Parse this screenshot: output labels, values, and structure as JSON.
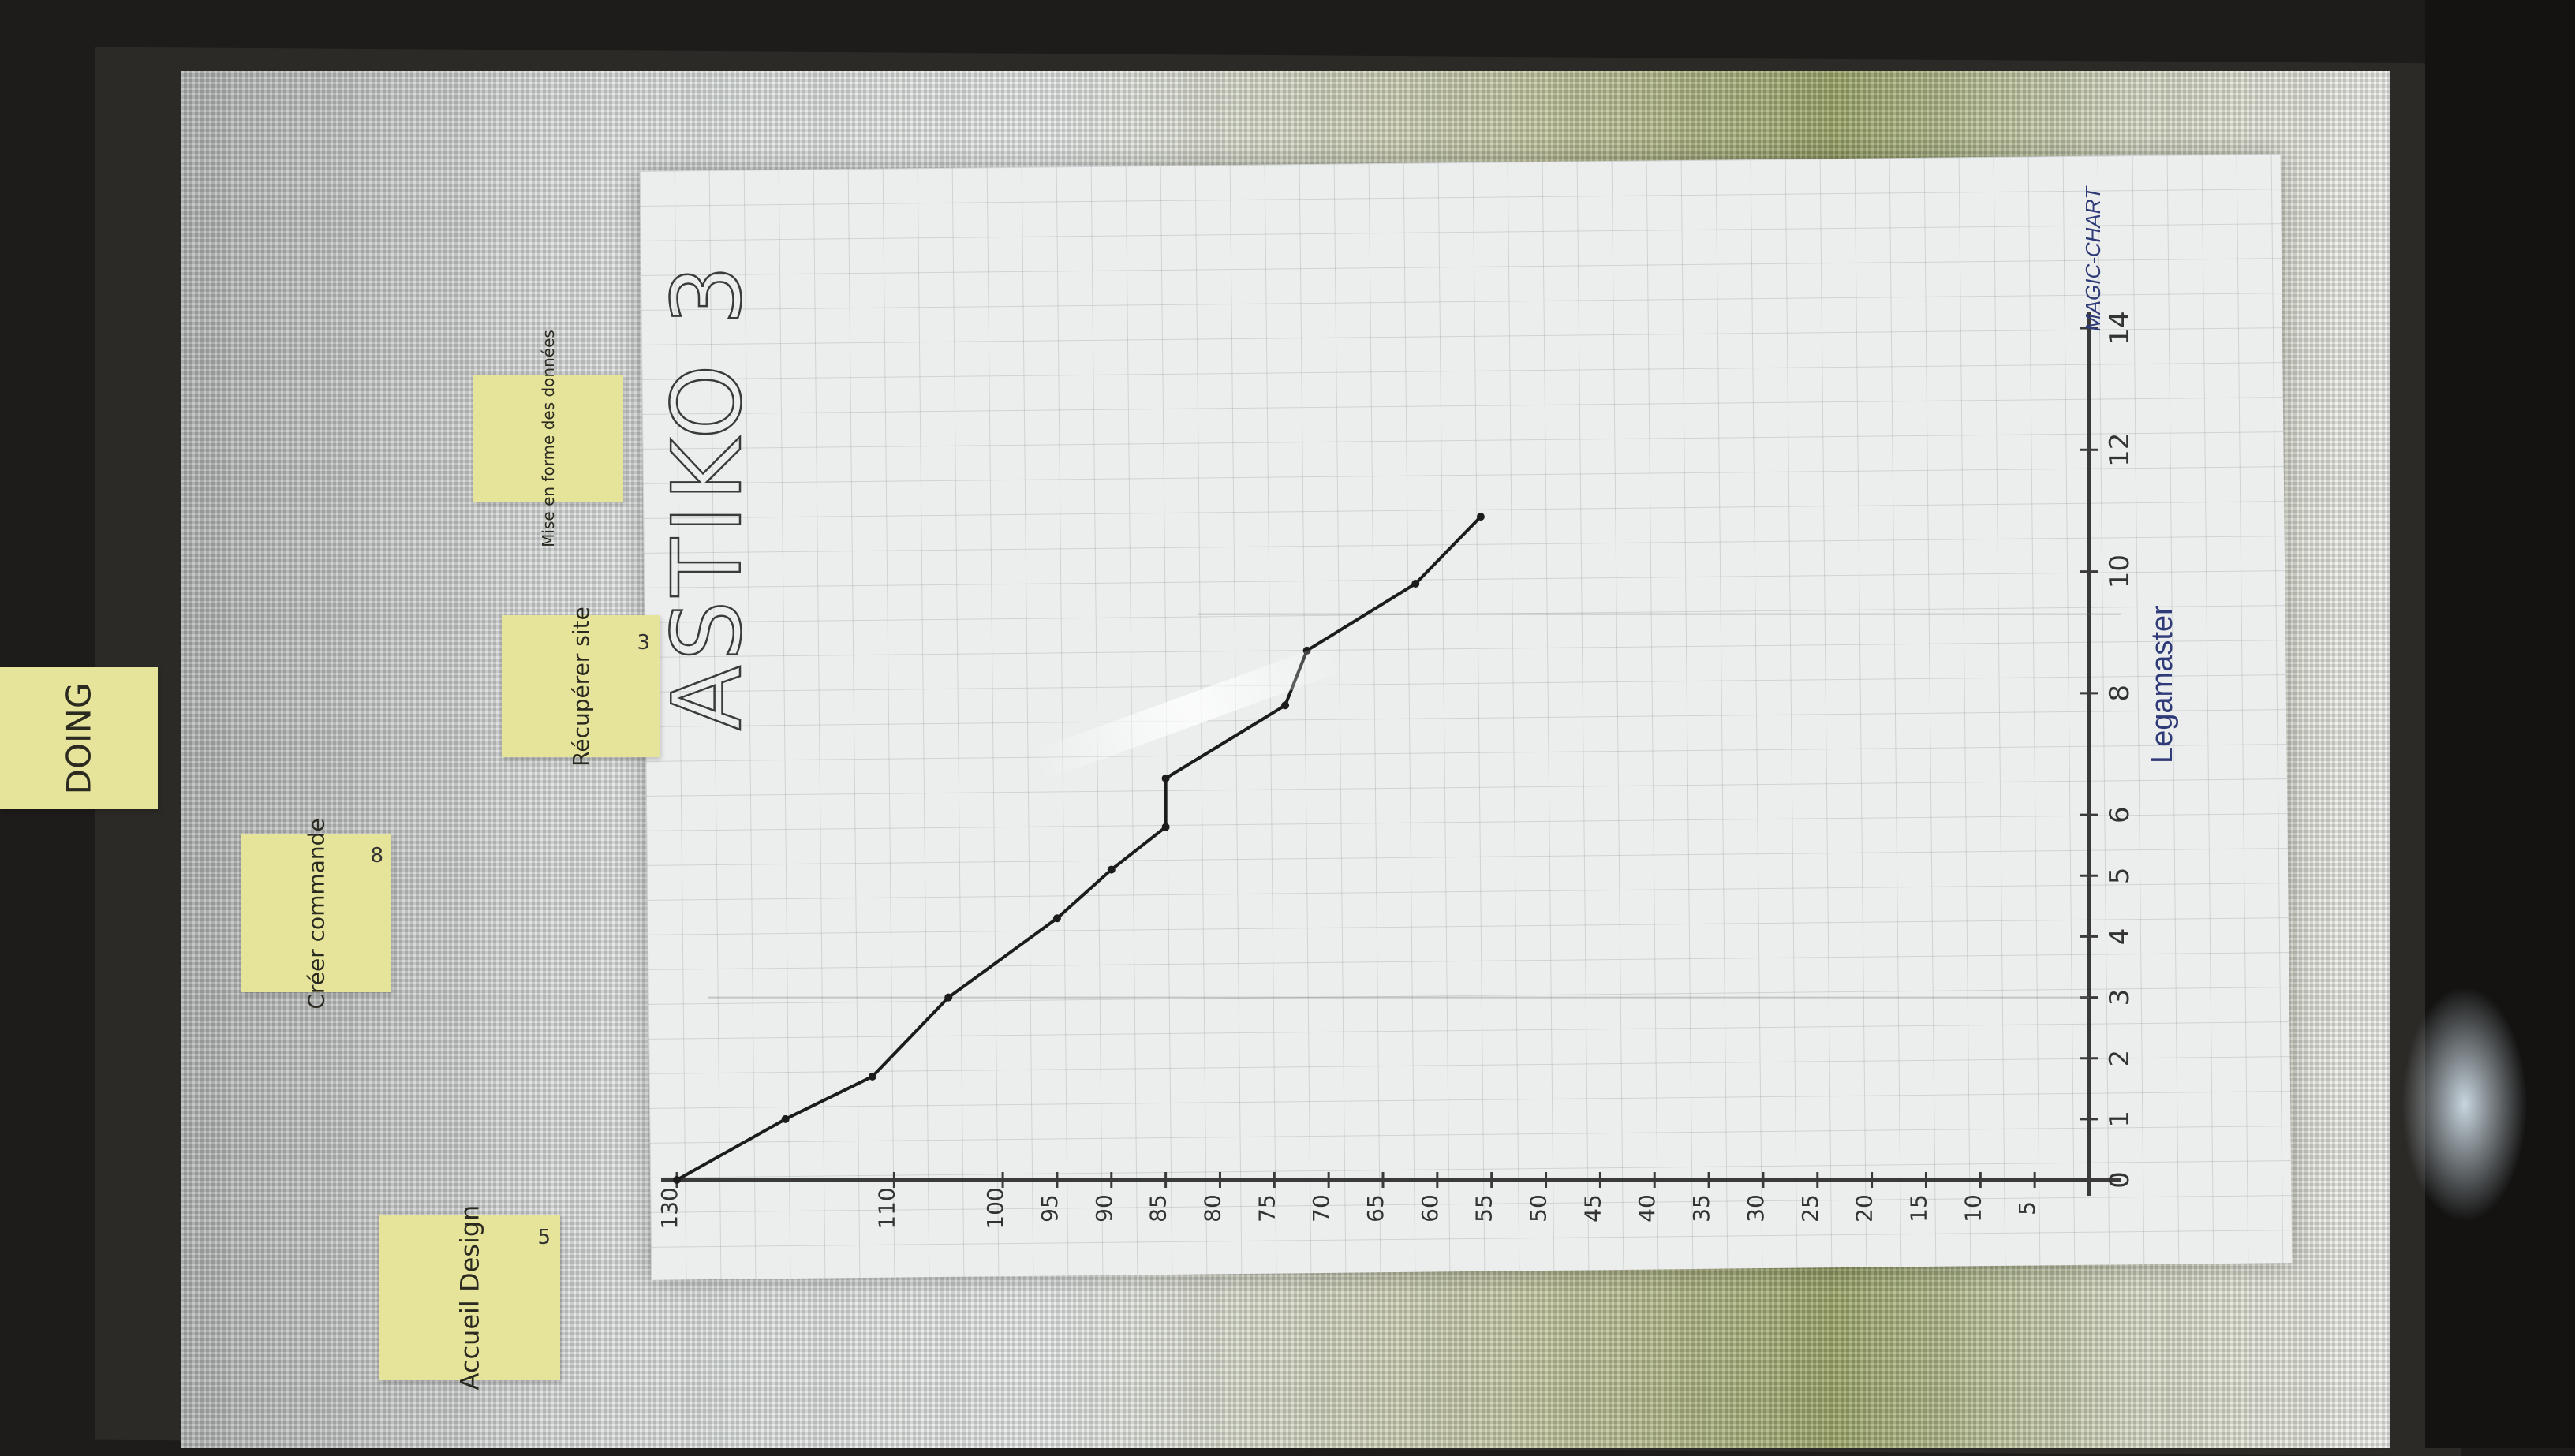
{
  "board": {
    "column_label": "DOING",
    "project_title": "ASTIKO 3",
    "brands": {
      "logo": "Legamaster",
      "product": "MAGIC-CHART"
    }
  },
  "sticky_notes": [
    {
      "text": "Accueil Design",
      "points": "5"
    },
    {
      "text": "Créer commande",
      "points": "8"
    },
    {
      "text": "Récupérer site",
      "points": "3"
    },
    {
      "text": "Mise en forme des données",
      "points": ""
    }
  ],
  "chart_data": {
    "type": "line",
    "title": "ASTIKO 3",
    "xlabel": "",
    "ylabel": "",
    "x_ticks": [
      "0",
      "1",
      "2",
      "3",
      "4",
      "5",
      "6",
      "8",
      "10",
      "12",
      "14"
    ],
    "y_ticks": [
      "130",
      "110",
      "100",
      "95",
      "90",
      "85",
      "80",
      "75",
      "70",
      "65",
      "60",
      "55",
      "50",
      "45",
      "40",
      "35",
      "30",
      "25",
      "20",
      "15",
      "10",
      "5"
    ],
    "x": [
      0,
      1,
      1.7,
      3,
      4.3,
      5.1,
      5.8,
      6.6,
      7.8,
      8.7,
      9.8,
      10.9
    ],
    "y": [
      130,
      120,
      112,
      105,
      95,
      90,
      85,
      85,
      74,
      72,
      62,
      56
    ],
    "ylim": [
      0,
      130
    ],
    "xlim": [
      0,
      14
    ],
    "grid": true,
    "legend": "none"
  }
}
